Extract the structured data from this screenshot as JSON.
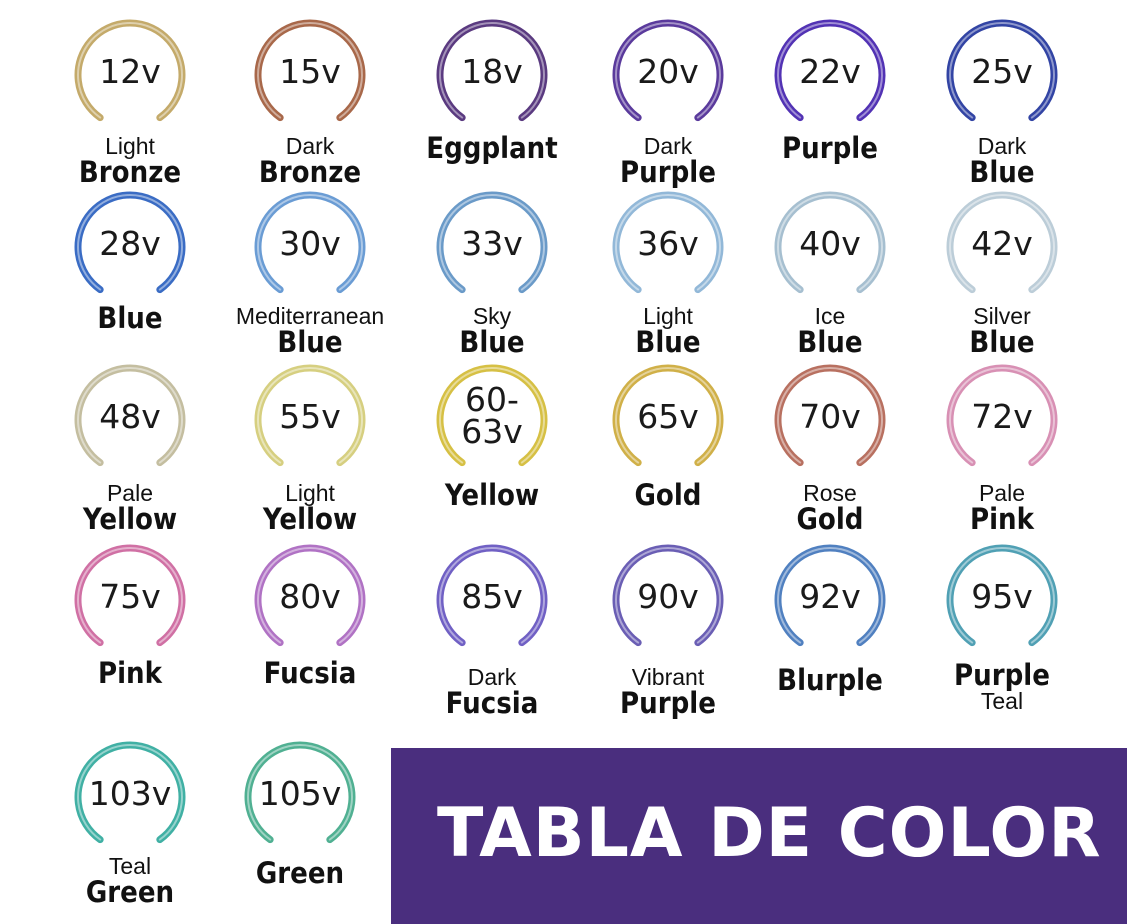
{
  "items": [
    {
      "voltage": "12v",
      "top": "Light",
      "main": "Bronze",
      "bottom": "",
      "color": "#c4aa6a"
    },
    {
      "voltage": "15v",
      "top": "Dark",
      "main": "Bronze",
      "bottom": "",
      "color": "#a8684a"
    },
    {
      "voltage": "18v",
      "top": "",
      "main": "Eggplant",
      "bottom": "",
      "color": "#5a3a80"
    },
    {
      "voltage": "20v",
      "top": "Dark",
      "main": "Purple",
      "bottom": "",
      "color": "#5a3a9c"
    },
    {
      "voltage": "22v",
      "top": "",
      "main": "Purple",
      "bottom": "",
      "color": "#5232b4"
    },
    {
      "voltage": "25v",
      "top": "Dark",
      "main": "Blue",
      "bottom": "",
      "color": "#3244a4"
    },
    {
      "voltage": "28v",
      "top": "",
      "main": "Blue",
      "bottom": "",
      "color": "#3a6cc4"
    },
    {
      "voltage": "30v",
      "top": "Mediterranean",
      "main": "Blue",
      "bottom": "",
      "color": "#6a9cd4"
    },
    {
      "voltage": "33v",
      "top": "Sky",
      "main": "Blue",
      "bottom": "",
      "color": "#6a9ac8"
    },
    {
      "voltage": "36v",
      "top": "Light",
      "main": "Blue",
      "bottom": "",
      "color": "#92b8d8"
    },
    {
      "voltage": "40v",
      "top": "Ice",
      "main": "Blue",
      "bottom": "",
      "color": "#a6bfd0"
    },
    {
      "voltage": "42v",
      "top": "Silver",
      "main": "Blue",
      "bottom": "",
      "color": "#bccdd8"
    },
    {
      "voltage": "48v",
      "top": "Pale",
      "main": "Yellow",
      "bottom": "",
      "color": "#c4bea0"
    },
    {
      "voltage": "55v",
      "top": "Light",
      "main": "Yellow",
      "bottom": "",
      "color": "#d6cf80"
    },
    {
      "voltage": "60-63v",
      "top": "",
      "main": "Yellow",
      "bottom": "",
      "color": "#d6c044"
    },
    {
      "voltage": "65v",
      "top": "",
      "main": "Gold",
      "bottom": "",
      "color": "#d0b048"
    },
    {
      "voltage": "70v",
      "top": "Rose",
      "main": "Gold",
      "bottom": "",
      "color": "#b87060"
    },
    {
      "voltage": "72v",
      "top": "Pale",
      "main": "Pink",
      "bottom": "",
      "color": "#d890b4"
    },
    {
      "voltage": "75v",
      "top": "",
      "main": "Pink",
      "bottom": "",
      "color": "#d070a4"
    },
    {
      "voltage": "80v",
      "top": "",
      "main": "Fucsia",
      "bottom": "",
      "color": "#b072c4"
    },
    {
      "voltage": "85v",
      "top": "Dark",
      "main": "Fucsia",
      "bottom": "",
      "color": "#7060c4"
    },
    {
      "voltage": "90v",
      "top": "Vibrant",
      "main": "Purple",
      "bottom": "",
      "color": "#6a5eb4"
    },
    {
      "voltage": "92v",
      "top": "",
      "main": "Blurple",
      "bottom": "",
      "color": "#5080c0"
    },
    {
      "voltage": "95v",
      "top": "",
      "main": "Purple",
      "bottom": "Teal",
      "color": "#50a0b4"
    },
    {
      "voltage": "103v",
      "top": "Teal",
      "main": "Green",
      "bottom": "",
      "color": "#40b0a4"
    },
    {
      "voltage": "105v",
      "top": "",
      "main": "Green",
      "bottom": "",
      "color": "#50b092"
    }
  ],
  "banner": {
    "title": "TABLA DE COLOR",
    "color": "#4a2e7e"
  }
}
